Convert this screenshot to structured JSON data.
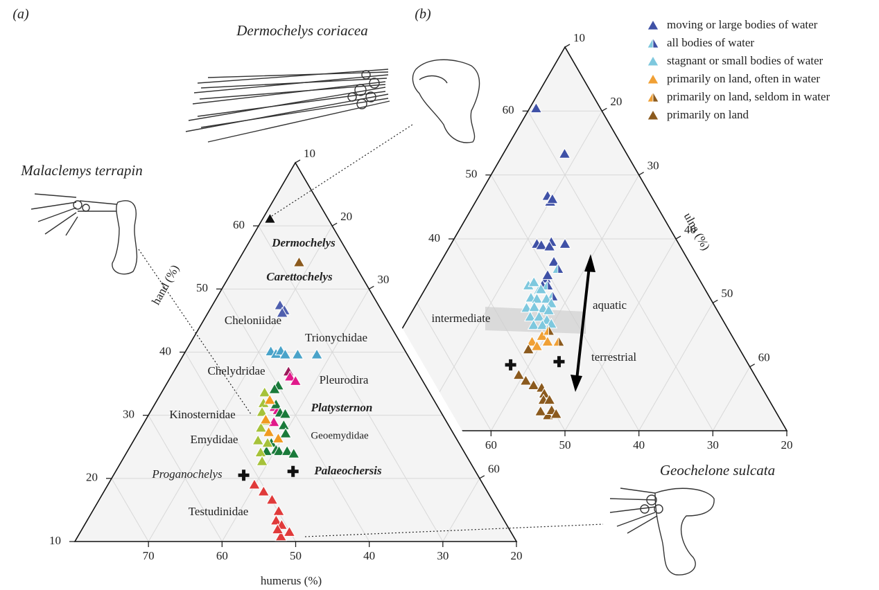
{
  "chart_data": [
    {
      "type": "ternary",
      "panel": "(a)",
      "hand_label": "hand (%)",
      "humerus_label": "humerus (%)",
      "hand_lim": [
        10,
        70
      ],
      "humerus_lim": [
        20,
        80
      ],
      "ulna_lim": [
        10,
        70
      ],
      "hand_ticks": [
        10,
        20,
        30,
        40,
        50,
        60
      ],
      "humerus_ticks": [
        70,
        60,
        50,
        40,
        30,
        20
      ],
      "ulna_ticks": [
        10,
        20,
        30,
        60
      ],
      "grid": true,
      "series": [
        {
          "name": "Dermochelys",
          "color": "#111111",
          "label_color": "#111111",
          "x": [
            27.9
          ],
          "values": [
            61.1
          ]
        },
        {
          "name": "Carettochelys",
          "color": "#8b5a1e",
          "label_color": "#a3263a",
          "x": [
            27.4
          ],
          "values": [
            54.2
          ]
        },
        {
          "name": "Cheloniidae",
          "color": "#4f5fae",
          "label_color": "#4f5fae",
          "x": [
            33.4,
            33.2,
            33.7
          ],
          "values": [
            47.4,
            46.6,
            46.2
          ]
        },
        {
          "name": "Trionychidae",
          "color": "#4aa3c9",
          "label_color": "#4aa3c9",
          "x": [
            38.3,
            37.8,
            36.9,
            36.6,
            34.9,
            32.3
          ],
          "values": [
            40.1,
            39.7,
            40.2,
            39.6,
            39.6,
            39.6
          ]
        },
        {
          "name": "Chelydridae",
          "color": "#9b1b5a",
          "label_color": "#9b1b5a",
          "x": [
            37.5
          ],
          "values": [
            36.9
          ]
        },
        {
          "name": "Pleurodira",
          "color": "#e0198a",
          "label_color": "#e0198a",
          "x": [
            37.7,
            37.3,
            42.2,
            42.0,
            43.5
          ],
          "values": [
            36.1,
            35.4,
            31.3,
            30.8,
            28.9
          ]
        },
        {
          "name": "Geoemydidae",
          "color": "#1a7a3a",
          "label_color": "#1a7a3a",
          "x": [
            40.0,
            40.8,
            41.8,
            41.9,
            41.3,
            42.4,
            42.8,
            45.5,
            45.4,
            45.1,
            44.0,
            43.3,
            46.8
          ],
          "values": [
            34.7,
            34.1,
            31.7,
            30.4,
            30.2,
            28.4,
            27.1,
            25.6,
            24.5,
            24.3,
            24.3,
            23.9,
            24.3
          ]
        },
        {
          "name": "Emydidae",
          "color": "#a6c23a",
          "label_color": "#a6c23a",
          "x": [
            42.4,
            43.4,
            44.3,
            44.7,
            45.7,
            47.1,
            47.7,
            48.2,
            46.0
          ],
          "values": [
            33.6,
            31.9,
            30.5,
            29.1,
            28.0,
            26.0,
            24.1,
            22.7,
            25.6
          ]
        },
        {
          "name": "Kinosternidae",
          "color": "#f09a20",
          "label_color": "#f09a20",
          "x": [
            42.3,
            44.4,
            45.0,
            44.2
          ],
          "values": [
            32.4,
            29.3,
            27.3,
            26.3
          ]
        },
        {
          "name": "Testudinidae",
          "color": "#e03a3a",
          "label_color": "#e03a3a",
          "x": [
            51.1,
            50.4,
            49.9,
            49.9,
            51.0,
            50.6,
            51.6,
            50.1,
            51.5
          ],
          "values": [
            19.0,
            17.9,
            16.6,
            14.8,
            13.3,
            12.6,
            10.8,
            11.5,
            11.9
          ]
        },
        {
          "name": "Proganochelys",
          "marker": "cross",
          "color": "#111111",
          "label_color": "#111111",
          "x": [
            51.8
          ],
          "values": [
            20.5
          ]
        },
        {
          "name": "Palaeochersis",
          "marker": "cross",
          "color": "#111111",
          "label_color": "#111111",
          "x": [
            44.8
          ],
          "values": [
            21.1
          ]
        }
      ],
      "annotations": [
        "Platysternon"
      ]
    },
    {
      "type": "ternary",
      "panel": "(b)",
      "ulna_label": "ulna (%)",
      "hand_lim": [
        10,
        70
      ],
      "humerus_lim": [
        20,
        80
      ],
      "ulna_lim": [
        10,
        70
      ],
      "hand_ticks": [
        60,
        50,
        40
      ],
      "humerus_ticks": [
        60,
        50,
        40,
        30,
        20
      ],
      "ulna_ticks": [
        10,
        20,
        30,
        40,
        50,
        60
      ],
      "grid": true,
      "legend": "top-right",
      "series": [
        {
          "name": "moving or large bodies of water",
          "color": "#3f51a6",
          "x": [
            28.7,
            28.4,
            34.0,
            34.1,
            33.6,
            39.2,
            38.7,
            37.1,
            37.7,
            35.4,
            38.3,
            40.7,
            41.7,
            40.2
          ],
          "values": [
            60.4,
            53.3,
            46.7,
            45.8,
            46.2,
            39.2,
            39.0,
            39.5,
            38.8,
            39.2,
            36.4,
            33.8,
            32.7,
            34.3
          ]
        },
        {
          "name": "all bodies of water",
          "colors": [
            "#7ec8de",
            "#3f51a6"
          ],
          "x": [
            38.3,
            42.5,
            41.2,
            41.0
          ],
          "values": [
            35.3,
            32.0,
            31.0,
            32.7
          ]
        },
        {
          "name": "stagnant or small bodies of water",
          "color": "#7ec8de",
          "x": [
            43.6,
            42.6,
            42.2,
            44.2,
            43.5,
            42.2,
            41.9,
            45.6,
            44.5,
            43.4,
            42.8,
            45.8,
            44.6,
            43.8,
            46.0,
            44.8,
            43.5
          ],
          "values": [
            32.7,
            33.2,
            32.1,
            30.8,
            30.6,
            30.6,
            29.9,
            29.2,
            29.3,
            29.1,
            28.8,
            27.8,
            27.8,
            27.3,
            26.5,
            26.5,
            26.7
          ]
        },
        {
          "name": "primarily on land, often in water",
          "color": "#f0a035",
          "x": [
            45.7,
            47.5,
            45.4,
            47.2
          ],
          "values": [
            24.8,
            23.9,
            23.9,
            23.2
          ]
        },
        {
          "name": "primarily on land, seldom in water",
          "colors": [
            "#f0a035",
            "#8b5a1e"
          ],
          "x": [
            44.4,
            43.9
          ],
          "values": [
            25.6,
            23.9
          ]
        },
        {
          "name": "primarily on land",
          "color": "#8b5a1e",
          "x": [
            48.6,
            51.9,
            51.4,
            50.7,
            49.8,
            49.9,
            50.5,
            49.7,
            51.8,
            51.1,
            50.2,
            49.9
          ],
          "values": [
            22.7,
            18.7,
            17.8,
            17.1,
            16.7,
            15.8,
            14.8,
            14.8,
            13.0,
            12.4,
            13.2,
            12.6
          ]
        },
        {
          "marker": "cross",
          "color": "#111111",
          "x": [
            52.2,
            45.4
          ],
          "values": [
            20.3,
            20.8
          ]
        }
      ],
      "annotations": [
        "intermediate",
        "aquatic",
        "terrestrial"
      ]
    }
  ],
  "species": [
    "Dermochelys coriacea",
    "Malaclemys terrapin",
    "Geochelone sulcata"
  ]
}
